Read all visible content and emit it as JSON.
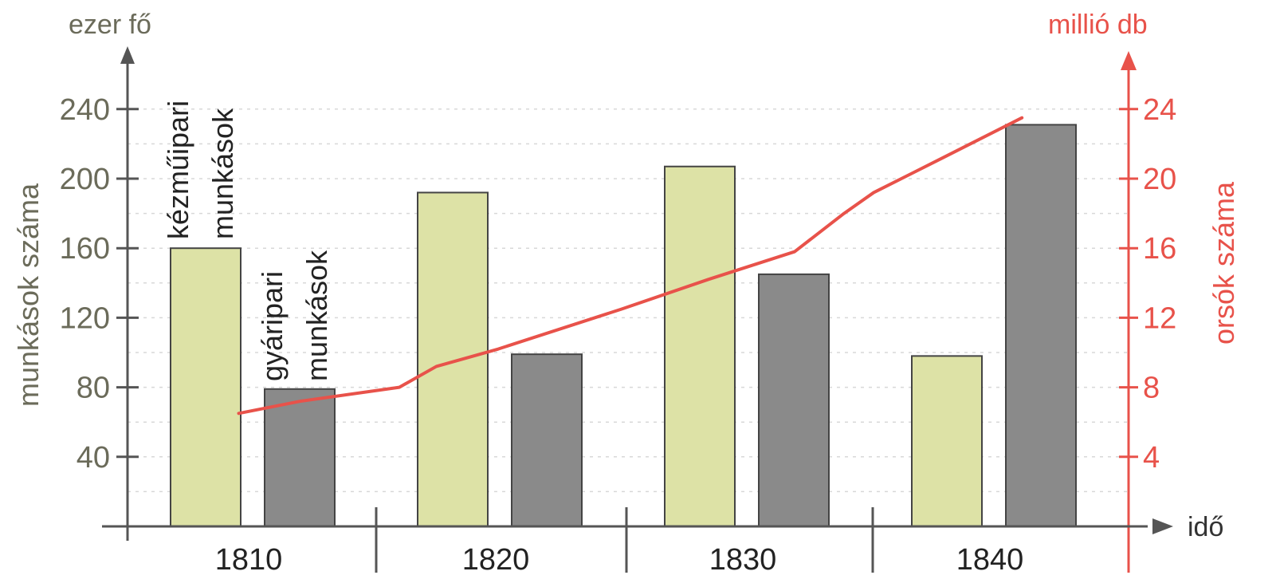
{
  "chart_data": {
    "type": "bar",
    "categories": [
      "1810",
      "1820",
      "1830",
      "1840"
    ],
    "series": [
      {
        "name": "kézműipari munkások",
        "values": [
          160,
          192,
          207,
          98
        ]
      },
      {
        "name": "gyáripari munkások",
        "values": [
          79,
          99,
          145,
          231
        ]
      }
    ],
    "line_series": {
      "x": [
        1809.5,
        1812,
        1816,
        1817.5,
        1820,
        1825,
        1828.5,
        1832,
        1834,
        1835.2,
        1838,
        1841.2
      ],
      "values": [
        6.5,
        7.2,
        8.0,
        9.2,
        10.2,
        12.5,
        14.2,
        15.8,
        18.0,
        19.2,
        21.2,
        23.5
      ]
    },
    "left_axis": {
      "unit": "ezer fő",
      "label": "munkások száma",
      "ticks": [
        "40",
        "80",
        "120",
        "160",
        "200",
        "240"
      ],
      "ylim": [
        0,
        250
      ]
    },
    "right_axis": {
      "unit": "millió db",
      "label": "orsók száma",
      "ticks": [
        "4",
        "8",
        "12",
        "16",
        "20",
        "24"
      ],
      "ylim": [
        0,
        25
      ]
    },
    "xlabel": "idő",
    "bar_labels": {
      "craft": [
        "kézműipari",
        "munkások"
      ],
      "factory": [
        "gyáripari",
        "munkások"
      ]
    },
    "grid": true,
    "colors": {
      "craft_fill": "#dde2a6",
      "factory_fill": "#8a8a8a",
      "line": "#e8524a",
      "axis": "#555555",
      "right_axis": "#e8524a",
      "left_text": "#6b6b5a",
      "grid": "#d8d8d8"
    }
  }
}
